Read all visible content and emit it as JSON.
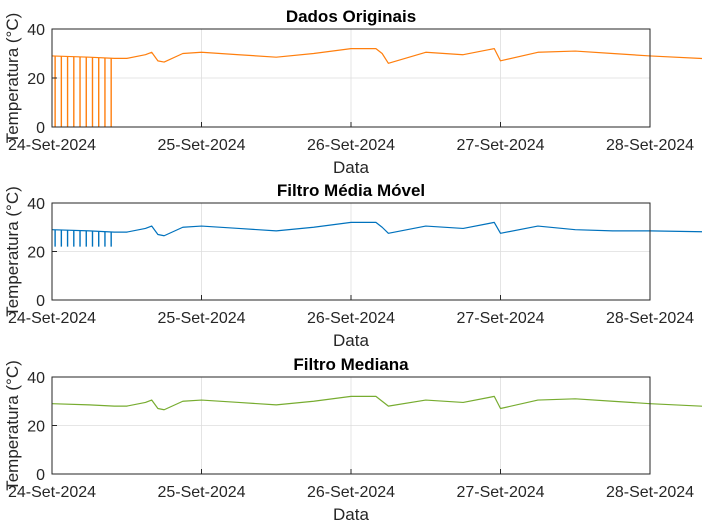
{
  "chart_data": [
    {
      "type": "line",
      "title": "Dados Originais",
      "xlabel": "Data",
      "ylabel": "Temperatura (°C)",
      "x_range": [
        "24-Set-2024",
        "28-Set-2024"
      ],
      "x_ticks": [
        "24-Set-2024",
        "25-Set-2024",
        "26-Set-2024",
        "27-Set-2024",
        "28-Set-2024"
      ],
      "ylim": [
        0,
        40
      ],
      "y_ticks": [
        "0",
        "20",
        "40"
      ],
      "grid": true,
      "color": "#ff7f0e",
      "series": [
        {
          "x": [
            "2024-09-24T00:00",
            "2024-09-24T06:00",
            "2024-09-24T10:00",
            "2024-09-24T12:00",
            "2024-09-24T15:00",
            "2024-09-24T16:00",
            "2024-09-24T17:00",
            "2024-09-24T18:00",
            "2024-09-24T21:00",
            "2024-09-25T00:00",
            "2024-09-25T06:00",
            "2024-09-25T12:00",
            "2024-09-25T18:00",
            "2024-09-26T00:00",
            "2024-09-26T04:00",
            "2024-09-26T05:00",
            "2024-09-26T06:00",
            "2024-09-26T12:00",
            "2024-09-26T18:00",
            "2024-09-26T22:00",
            "2024-09-26T23:00",
            "2024-09-27T00:00",
            "2024-09-27T06:00",
            "2024-09-27T12:00",
            "2024-09-27T18:00",
            "2024-09-28T00:00",
            "2024-09-28T12:00",
            "2024-09-28T20:00",
            "2024-09-28T22:00",
            "2024-09-29T00:00"
          ],
          "y": [
            29,
            28.5,
            28,
            28,
            29.5,
            30.5,
            27,
            26.5,
            30,
            30.5,
            29.5,
            28.5,
            30,
            32,
            32,
            30,
            26,
            30.5,
            29.5,
            31.5,
            32,
            27,
            30.5,
            31,
            30,
            29,
            27.5,
            25.5,
            27,
            28
          ]
        }
      ],
      "dropouts": {
        "x": [
          "2024-09-24T00:30",
          "2024-09-24T01:30",
          "2024-09-24T02:30",
          "2024-09-24T03:30",
          "2024-09-24T04:30",
          "2024-09-24T05:30",
          "2024-09-24T06:30",
          "2024-09-24T07:30",
          "2024-09-24T08:30",
          "2024-09-24T09:30"
        ],
        "y": 0
      }
    },
    {
      "type": "line",
      "title": "Filtro Média Móvel",
      "xlabel": "Data",
      "ylabel": "Temperatura (°C)",
      "x_range": [
        "24-Set-2024",
        "28-Set-2024"
      ],
      "x_ticks": [
        "24-Set-2024",
        "25-Set-2024",
        "26-Set-2024",
        "27-Set-2024",
        "28-Set-2024"
      ],
      "ylim": [
        0,
        40
      ],
      "y_ticks": [
        "0",
        "20",
        "40"
      ],
      "grid": true,
      "color": "#0072bd",
      "series": [
        {
          "x": [
            "2024-09-24T00:00",
            "2024-09-24T06:00",
            "2024-09-24T10:00",
            "2024-09-24T12:00",
            "2024-09-24T15:00",
            "2024-09-24T16:00",
            "2024-09-24T17:00",
            "2024-09-24T18:00",
            "2024-09-24T21:00",
            "2024-09-25T00:00",
            "2024-09-25T06:00",
            "2024-09-25T12:00",
            "2024-09-25T18:00",
            "2024-09-26T00:00",
            "2024-09-26T04:00",
            "2024-09-26T05:00",
            "2024-09-26T06:00",
            "2024-09-26T12:00",
            "2024-09-26T18:00",
            "2024-09-26T22:00",
            "2024-09-26T23:00",
            "2024-09-27T00:00",
            "2024-09-27T06:00",
            "2024-09-27T12:00",
            "2024-09-27T18:00",
            "2024-09-28T00:00",
            "2024-09-28T12:00",
            "2024-09-28T20:00",
            "2024-09-28T22:00",
            "2024-09-29T00:00"
          ],
          "y": [
            29,
            28.5,
            28,
            28,
            29.5,
            30.5,
            27,
            26.5,
            30,
            30.5,
            29.5,
            28.5,
            30,
            32,
            32,
            30,
            27.5,
            30.5,
            29.5,
            31.5,
            32,
            27.5,
            30.5,
            29,
            28.5,
            28.5,
            28,
            27.5,
            25.5,
            28
          ]
        }
      ],
      "dropouts": {
        "x": [
          "2024-09-24T00:30",
          "2024-09-24T01:30",
          "2024-09-24T02:30",
          "2024-09-24T03:30",
          "2024-09-24T04:30",
          "2024-09-24T05:30",
          "2024-09-24T06:30",
          "2024-09-24T07:30",
          "2024-09-24T08:30",
          "2024-09-24T09:30"
        ],
        "y": 22
      }
    },
    {
      "type": "line",
      "title": "Filtro Mediana",
      "xlabel": "Data",
      "ylabel": "Temperatura (°C)",
      "x_range": [
        "24-Set-2024",
        "28-Set-2024"
      ],
      "x_ticks": [
        "24-Set-2024",
        "25-Set-2024",
        "26-Set-2024",
        "27-Set-2024",
        "28-Set-2024"
      ],
      "ylim": [
        0,
        40
      ],
      "y_ticks": [
        "0",
        "20",
        "40"
      ],
      "grid": true,
      "color": "#77ac30",
      "series": [
        {
          "x": [
            "2024-09-24T00:00",
            "2024-09-24T06:00",
            "2024-09-24T10:00",
            "2024-09-24T12:00",
            "2024-09-24T15:00",
            "2024-09-24T16:00",
            "2024-09-24T17:00",
            "2024-09-24T18:00",
            "2024-09-24T21:00",
            "2024-09-25T00:00",
            "2024-09-25T06:00",
            "2024-09-25T12:00",
            "2024-09-25T18:00",
            "2024-09-26T00:00",
            "2024-09-26T04:00",
            "2024-09-26T05:00",
            "2024-09-26T06:00",
            "2024-09-26T12:00",
            "2024-09-26T18:00",
            "2024-09-26T22:00",
            "2024-09-26T23:00",
            "2024-09-27T00:00",
            "2024-09-27T06:00",
            "2024-09-27T12:00",
            "2024-09-27T18:00",
            "2024-09-28T00:00",
            "2024-09-28T12:00",
            "2024-09-28T20:00",
            "2024-09-28T22:00",
            "2024-09-29T00:00"
          ],
          "y": [
            29,
            28.5,
            28,
            28,
            29.5,
            30.5,
            27,
            26.5,
            30,
            30.5,
            29.5,
            28.5,
            30,
            32,
            32,
            30,
            28,
            30.5,
            29.5,
            31.5,
            32,
            27,
            30.5,
            31,
            30,
            29,
            27.5,
            25.5,
            27,
            28
          ]
        }
      ]
    }
  ]
}
